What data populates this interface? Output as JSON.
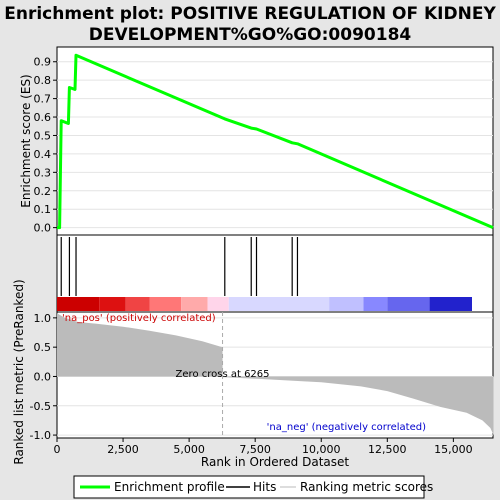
{
  "title_line1": "Enrichment plot: POSITIVE REGULATION OF KIDNEY",
  "title_line2": "DEVELOPMENT%GO%GO:0090184",
  "chart_data": {
    "type": "line",
    "es_panel": {
      "ylabel": "Enrichment score (ES)",
      "ylim": [
        -0.04,
        0.98
      ],
      "yticks": [
        0.0,
        0.1,
        0.2,
        0.3,
        0.4,
        0.5,
        0.6,
        0.7,
        0.8,
        0.9
      ],
      "ytick_labels": [
        "0.0",
        "0.1",
        "0.2",
        "0.3",
        "0.4",
        "0.5",
        "0.6",
        "0.7",
        "0.8",
        "0.9"
      ],
      "profile_color": "#00ff00",
      "profile": [
        [
          0,
          0.0
        ],
        [
          100,
          0.0
        ],
        [
          160,
          0.58
        ],
        [
          430,
          0.565
        ],
        [
          470,
          0.76
        ],
        [
          680,
          0.75
        ],
        [
          720,
          0.935
        ],
        [
          6350,
          0.59
        ],
        [
          7350,
          0.54
        ],
        [
          7550,
          0.535
        ],
        [
          8900,
          0.46
        ],
        [
          9100,
          0.455
        ],
        [
          16500,
          0.0
        ]
      ]
    },
    "hits": {
      "positions": [
        160,
        470,
        720,
        6350,
        7350,
        7550,
        8900,
        9100
      ]
    },
    "rank_panel": {
      "ylabel": "Ranked list metric (PreRanked)",
      "ylim": [
        -1.05,
        1.1
      ],
      "yticks": [
        1.0,
        0.5,
        0.0,
        -0.5,
        -1.0
      ],
      "ytick_labels": [
        "1.0",
        "0.5",
        "0.0",
        "-0.5",
        "-1.0"
      ],
      "pos_label": "'na_pos' (positively correlated)",
      "neg_label": "'na_neg' (negatively correlated)",
      "zero_cross_label": "Zero cross at 6265",
      "zero_cross": 6265,
      "metric": [
        [
          0,
          1.08
        ],
        [
          300,
          1.0
        ],
        [
          800,
          0.93
        ],
        [
          1500,
          0.9
        ],
        [
          2500,
          0.85
        ],
        [
          3500,
          0.78
        ],
        [
          4500,
          0.7
        ],
        [
          5500,
          0.6
        ],
        [
          6265,
          0.5
        ],
        [
          6266,
          -0.01
        ],
        [
          8000,
          -0.05
        ],
        [
          10000,
          -0.1
        ],
        [
          11500,
          -0.17
        ],
        [
          12500,
          -0.25
        ],
        [
          13500,
          -0.38
        ],
        [
          14500,
          -0.52
        ],
        [
          15500,
          -0.62
        ],
        [
          16100,
          -0.75
        ],
        [
          16400,
          -0.88
        ],
        [
          16520,
          -1.0
        ]
      ]
    },
    "x_axis": {
      "xlabel": "Rank in Ordered Dataset",
      "xlim": [
        0,
        16500
      ],
      "xticks": [
        0,
        2500,
        5000,
        7500,
        10000,
        12500,
        15000
      ],
      "xtick_labels": [
        "0",
        "2,500",
        "5,000",
        "7,500",
        "10,000",
        "12,500",
        "15,000"
      ]
    },
    "heatmap_colors": [
      "#cc0000",
      "#ff3333",
      "#ff6666",
      "#ff9999",
      "#ffcccc",
      "#ccccff",
      "#9999ff",
      "#6666ff",
      "#3333cc",
      "#0000cc"
    ],
    "legend": {
      "placement": "bottom",
      "entries": [
        {
          "label": "Enrichment profile",
          "color": "#00ff00"
        },
        {
          "label": "Hits",
          "color": "#000000"
        },
        {
          "label": "Ranking metric scores",
          "color": "#bbbbbb"
        }
      ]
    }
  }
}
